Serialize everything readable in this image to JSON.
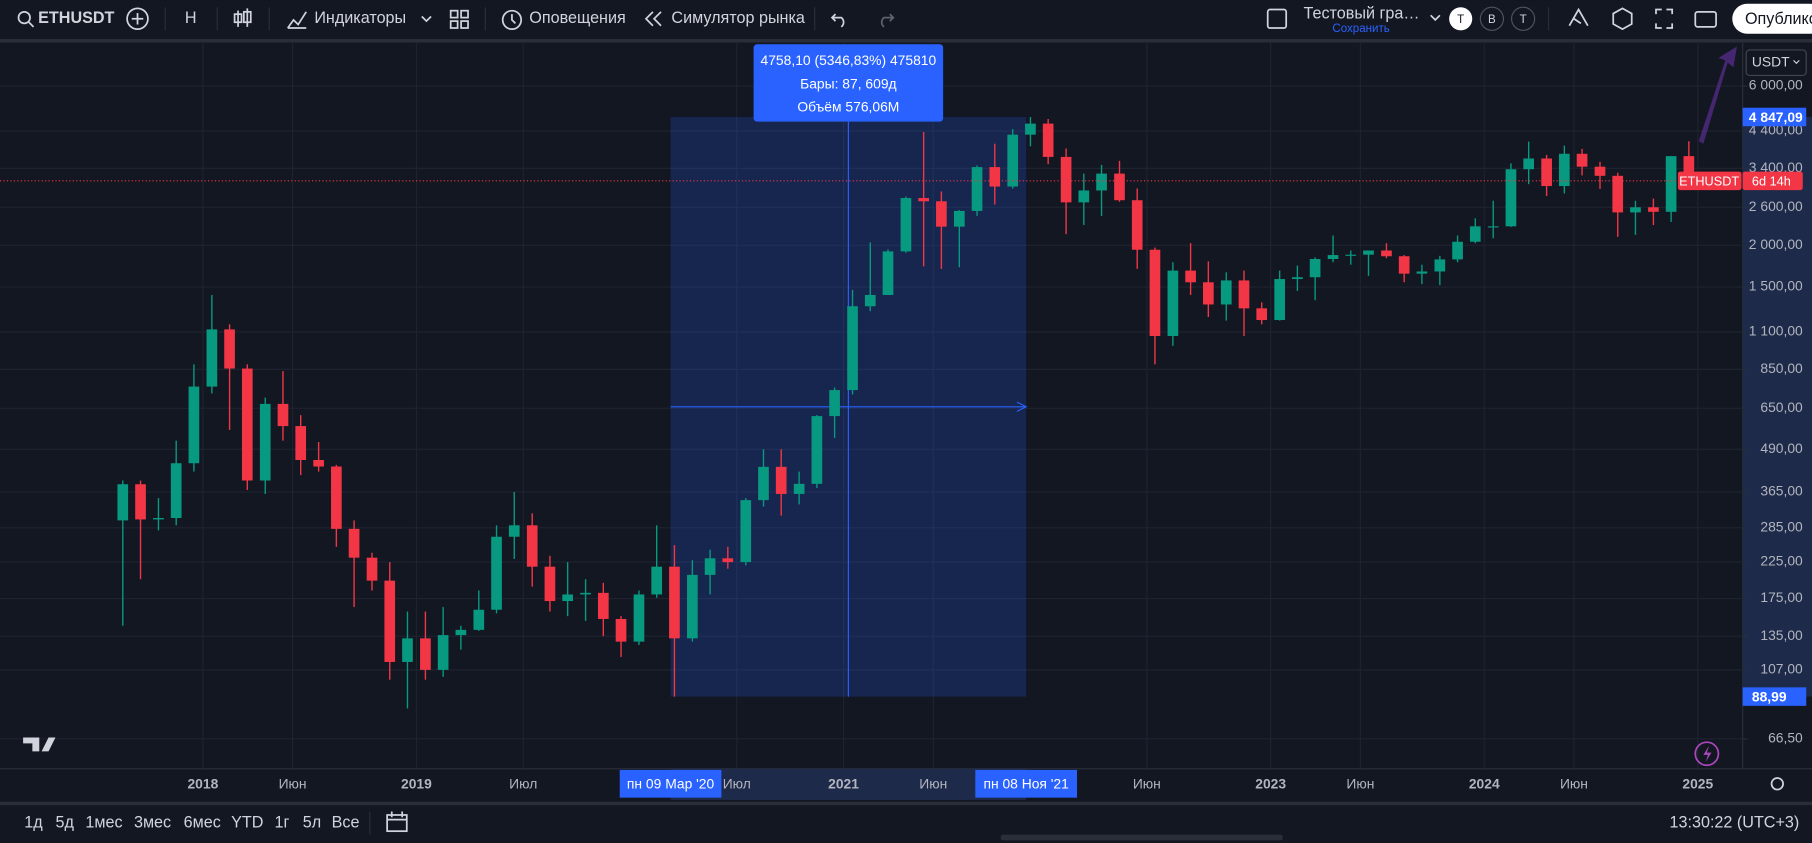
{
  "toolbar": {
    "symbol": "ETHUSDT",
    "interval": "H",
    "indicators": "Индикаторы",
    "alerts": "Оповещения",
    "replay": "Симулятор рынка",
    "layout_name": "Тестовый гра…",
    "save": "Сохранить",
    "badges": [
      "Т",
      "В",
      "Т"
    ],
    "publish": "Опублико"
  },
  "chart_data": {
    "type": "candlestick",
    "log_scale": true,
    "grid": true,
    "up_color": "#089981",
    "down_color": "#f23645",
    "currency": "USDT",
    "countdown": "6d 14h",
    "xlim": [
      2017.05,
      2025.21
    ],
    "ylim": [
      54.1,
      8071
    ],
    "xticks": [
      2018,
      {
        "value": 2018.42,
        "label": "Июн"
      },
      2019,
      {
        "value": 2019.5,
        "label": "Июл"
      },
      {
        "value": 2020.5,
        "label": "Июл"
      },
      2021,
      {
        "value": 2021.42,
        "label": "Июн"
      },
      {
        "value": 2022.42,
        "label": "Июн"
      },
      2023,
      {
        "value": 2023.42,
        "label": "Июн"
      },
      2024,
      {
        "value": 2024.42,
        "label": "Июн"
      },
      2025
    ],
    "yticks": [
      {
        "value": 6000,
        "label": "6 000,00"
      },
      {
        "value": 4400,
        "label": "4 400,00"
      },
      {
        "value": 3400,
        "label": "3 400,00"
      },
      {
        "value": 2600,
        "label": "2 600,00"
      },
      {
        "value": 2000,
        "label": "2 000,00"
      },
      {
        "value": 1500,
        "label": "1 500,00"
      },
      {
        "value": 1100,
        "label": "1 100,00"
      },
      {
        "value": 850,
        "label": "850,00"
      },
      {
        "value": 650,
        "label": "650,00"
      },
      {
        "value": 490,
        "label": "490,00"
      },
      {
        "value": 365,
        "label": "365,00"
      },
      {
        "value": 285,
        "label": "285,00"
      },
      {
        "value": 225,
        "label": "225,00"
      },
      {
        "value": 175,
        "label": "175,00"
      },
      {
        "value": 135,
        "label": "135,00"
      },
      {
        "value": 107,
        "label": "107,00"
      },
      {
        "value": 66.5,
        "label": "66,50"
      }
    ],
    "x": [
      2017.625,
      2017.708,
      2017.792,
      2017.875,
      2017.958,
      2018.042,
      2018.125,
      2018.208,
      2018.292,
      2018.375,
      2018.458,
      2018.542,
      2018.625,
      2018.708,
      2018.792,
      2018.875,
      2018.958,
      2019.042,
      2019.125,
      2019.208,
      2019.292,
      2019.375,
      2019.458,
      2019.542,
      2019.625,
      2019.708,
      2019.792,
      2019.875,
      2019.958,
      2020.042,
      2020.125,
      2020.208,
      2020.292,
      2020.375,
      2020.458,
      2020.542,
      2020.625,
      2020.708,
      2020.792,
      2020.875,
      2020.958,
      2021.042,
      2021.125,
      2021.208,
      2021.292,
      2021.375,
      2021.458,
      2021.542,
      2021.625,
      2021.708,
      2021.792,
      2021.875,
      2021.958,
      2022.042,
      2022.125,
      2022.208,
      2022.292,
      2022.375,
      2022.458,
      2022.542,
      2022.625,
      2022.708,
      2022.792,
      2022.875,
      2022.958,
      2023.042,
      2023.125,
      2023.208,
      2023.292,
      2023.375,
      2023.458,
      2023.542,
      2023.625,
      2023.708,
      2023.792,
      2023.875,
      2023.958,
      2024.042,
      2024.125,
      2024.208,
      2024.292,
      2024.375,
      2024.458,
      2024.542,
      2024.625,
      2024.708,
      2024.792,
      2024.875,
      2024.958
    ],
    "ohlc": [
      [
        300,
        395,
        145,
        385
      ],
      [
        385,
        395,
        200,
        302
      ],
      [
        302,
        350,
        280,
        305
      ],
      [
        305,
        520,
        290,
        445
      ],
      [
        445,
        880,
        420,
        755
      ],
      [
        755,
        1420,
        720,
        1120
      ],
      [
        1120,
        1160,
        560,
        855
      ],
      [
        855,
        880,
        370,
        395
      ],
      [
        395,
        700,
        360,
        670
      ],
      [
        670,
        840,
        520,
        575
      ],
      [
        575,
        620,
        410,
        455
      ],
      [
        455,
        515,
        420,
        435
      ],
      [
        435,
        440,
        250,
        283
      ],
      [
        283,
        300,
        165,
        232
      ],
      [
        232,
        240,
        185,
        198
      ],
      [
        198,
        225,
        100,
        113
      ],
      [
        113,
        160,
        82,
        133
      ],
      [
        133,
        160,
        100,
        107
      ],
      [
        107,
        165,
        102,
        136
      ],
      [
        136,
        145,
        123,
        141
      ],
      [
        141,
        185,
        140,
        162
      ],
      [
        162,
        290,
        158,
        268
      ],
      [
        268,
        365,
        230,
        290
      ],
      [
        290,
        315,
        190,
        218
      ],
      [
        218,
        235,
        160,
        172
      ],
      [
        172,
        225,
        155,
        180
      ],
      [
        180,
        200,
        150,
        182
      ],
      [
        182,
        195,
        135,
        152
      ],
      [
        152,
        155,
        117,
        130
      ],
      [
        130,
        185,
        127,
        180
      ],
      [
        180,
        290,
        176,
        218
      ],
      [
        218,
        253,
        89,
        133
      ],
      [
        133,
        228,
        130,
        206
      ],
      [
        206,
        245,
        180,
        231
      ],
      [
        231,
        250,
        215,
        225
      ],
      [
        225,
        350,
        220,
        345
      ],
      [
        345,
        490,
        330,
        434
      ],
      [
        434,
        490,
        310,
        360
      ],
      [
        360,
        420,
        335,
        386
      ],
      [
        386,
        620,
        375,
        616
      ],
      [
        616,
        750,
        530,
        737
      ],
      [
        737,
        1470,
        715,
        1314
      ],
      [
        1314,
        2040,
        1270,
        1420
      ],
      [
        1420,
        1945,
        1420,
        1918
      ],
      [
        1918,
        2800,
        1900,
        2772
      ],
      [
        2772,
        4370,
        1730,
        2710
      ],
      [
        2710,
        2900,
        1700,
        2275
      ],
      [
        2275,
        2550,
        1720,
        2535
      ],
      [
        2535,
        3470,
        2450,
        3430
      ],
      [
        3430,
        4030,
        2650,
        3000
      ],
      [
        3000,
        4460,
        2960,
        4290
      ],
      [
        4290,
        4847,
        3960,
        4630
      ],
      [
        4630,
        4780,
        3500,
        3680
      ],
      [
        3680,
        3900,
        2160,
        2690
      ],
      [
        2690,
        3280,
        2300,
        2920
      ],
      [
        2920,
        3480,
        2450,
        3280
      ],
      [
        3280,
        3580,
        2700,
        2730
      ],
      [
        2730,
        2960,
        1700,
        1940
      ],
      [
        1940,
        1970,
        880,
        1070
      ],
      [
        1070,
        1780,
        1000,
        1680
      ],
      [
        1680,
        2030,
        1420,
        1550
      ],
      [
        1550,
        1790,
        1220,
        1330
      ],
      [
        1330,
        1660,
        1190,
        1570
      ],
      [
        1570,
        1680,
        1070,
        1295
      ],
      [
        1295,
        1350,
        1160,
        1195
      ],
      [
        1195,
        1680,
        1190,
        1585
      ],
      [
        1585,
        1740,
        1460,
        1605
      ],
      [
        1605,
        1840,
        1370,
        1820
      ],
      [
        1820,
        2140,
        1780,
        1870
      ],
      [
        1870,
        1930,
        1750,
        1875
      ],
      [
        1875,
        1930,
        1620,
        1930
      ],
      [
        1930,
        2030,
        1830,
        1855
      ],
      [
        1855,
        1870,
        1550,
        1645
      ],
      [
        1645,
        1750,
        1530,
        1670
      ],
      [
        1670,
        1860,
        1520,
        1815
      ],
      [
        1815,
        2140,
        1780,
        2050
      ],
      [
        2050,
        2410,
        2030,
        2280
      ],
      [
        2280,
        2720,
        2100,
        2280
      ],
      [
        2280,
        3520,
        2270,
        3380
      ],
      [
        3380,
        4090,
        3050,
        3640
      ],
      [
        3640,
        3730,
        2810,
        3010
      ],
      [
        3010,
        3980,
        2860,
        3760
      ],
      [
        3760,
        3890,
        3240,
        3440
      ],
      [
        3440,
        3560,
        2950,
        3230
      ],
      [
        3230,
        3300,
        2120,
        2510
      ],
      [
        2510,
        2720,
        2150,
        2600
      ],
      [
        2600,
        2760,
        2300,
        2520
      ],
      [
        2520,
        3700,
        2350,
        3700
      ],
      [
        3700,
        4100,
        3050,
        3120
      ]
    ],
    "measure": {
      "start": {
        "value": 2020.19,
        "label": "пн 09 Мар '20"
      },
      "end": {
        "value": 2021.855,
        "label": "пн 08 Ноя '21"
      },
      "from_price": {
        "value": 88.99,
        "label": "88,99"
      },
      "to_price": {
        "value": 4847.09,
        "label": "4 847,09"
      },
      "lines": [
        "4758,10 (5346,83%) 475810",
        "Бары: 87, 609д",
        "Объём 576,06M"
      ]
    }
  },
  "bottom_bar": {
    "ranges": [
      "1д",
      "5д",
      "1мес",
      "3мес",
      "6мес",
      "YTD",
      "1г",
      "5л",
      "Все"
    ],
    "clock": "13:30:22 (UTC+3)"
  }
}
